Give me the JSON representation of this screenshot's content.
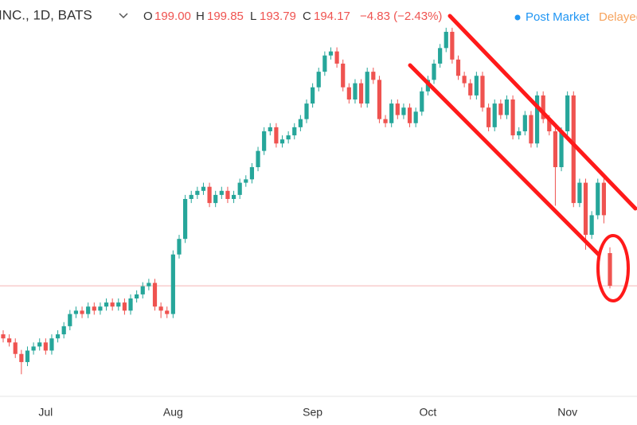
{
  "header": {
    "symbol": "INC., 1D, BATS",
    "o_label": "O",
    "open": "199.00",
    "h_label": "H",
    "high": "199.85",
    "l_label": "L",
    "low": "193.79",
    "c_label": "C",
    "close": "194.17",
    "change": "−4.83 (−2.43%)",
    "status": "Post Market",
    "delay": "Delayed"
  },
  "chart_data": {
    "type": "candlestick",
    "categories": [
      null,
      null,
      null,
      null,
      null,
      null,
      null,
      "Jul",
      null,
      null,
      null,
      null,
      null,
      null,
      null,
      null,
      null,
      null,
      null,
      null,
      null,
      null,
      null,
      null,
      null,
      null,
      null,
      null,
      "Aug",
      null,
      null,
      null,
      null,
      null,
      null,
      null,
      null,
      null,
      null,
      null,
      null,
      null,
      null,
      null,
      null,
      null,
      null,
      null,
      null,
      null,
      null,
      "Sep",
      null,
      null,
      null,
      null,
      null,
      null,
      null,
      null,
      null,
      null,
      null,
      null,
      null,
      null,
      null,
      null,
      null,
      null,
      "Oct",
      null,
      null,
      null,
      null,
      null,
      null,
      null,
      null,
      null,
      null,
      null,
      null,
      null,
      null,
      null,
      null,
      null,
      null,
      null,
      null,
      null,
      null,
      "Nov",
      null,
      null,
      null,
      null,
      null,
      null,
      null
    ],
    "open": [
      187.0,
      186.4,
      185.8,
      184.1,
      182.9,
      184.6,
      185.2,
      185.8,
      184.6,
      186.4,
      187.0,
      188.2,
      190.0,
      190.5,
      190.0,
      191.1,
      190.5,
      191.1,
      191.7,
      191.1,
      191.7,
      190.5,
      192.3,
      192.9,
      194.1,
      194.6,
      191.1,
      190.5,
      190.0,
      198.8,
      201.1,
      207.0,
      207.6,
      208.2,
      208.8,
      206.4,
      207.6,
      208.2,
      207.0,
      207.6,
      209.4,
      209.9,
      211.7,
      214.1,
      217.0,
      217.6,
      215.2,
      215.8,
      216.4,
      217.6,
      218.8,
      221.1,
      223.5,
      225.8,
      228.2,
      228.8,
      227.0,
      223.5,
      221.7,
      224.1,
      221.1,
      225.8,
      224.6,
      218.8,
      218.2,
      221.1,
      219.4,
      220.5,
      218.2,
      219.9,
      222.9,
      224.6,
      227.0,
      229.3,
      231.7,
      227.6,
      225.2,
      224.1,
      222.3,
      225.2,
      220.5,
      217.6,
      221.1,
      219.4,
      221.7,
      216.4,
      217.0,
      219.4,
      215.2,
      222.3,
      218.8,
      217.0,
      211.7,
      217.0,
      222.3,
      206.4,
      209.4,
      201.7,
      204.6,
      209.4,
      199.0
    ],
    "high": [
      187.6,
      187.0,
      186.4,
      184.7,
      185.2,
      185.8,
      186.4,
      186.4,
      187.0,
      187.6,
      188.8,
      190.6,
      191.1,
      191.1,
      191.7,
      191.7,
      191.7,
      192.3,
      192.3,
      192.3,
      192.3,
      192.9,
      193.5,
      194.7,
      195.2,
      195.2,
      191.7,
      191.1,
      199.4,
      201.7,
      207.6,
      208.2,
      208.8,
      209.4,
      209.4,
      208.2,
      208.8,
      208.8,
      208.2,
      210.0,
      210.5,
      212.3,
      214.7,
      217.6,
      218.2,
      218.2,
      216.4,
      217.0,
      218.2,
      219.4,
      221.7,
      224.1,
      226.4,
      228.8,
      229.4,
      229.4,
      227.6,
      224.1,
      224.7,
      224.7,
      226.4,
      226.4,
      225.2,
      219.4,
      221.7,
      221.7,
      221.1,
      221.1,
      220.5,
      223.5,
      225.2,
      227.6,
      229.9,
      232.3,
      232.3,
      228.2,
      225.8,
      224.7,
      225.8,
      225.8,
      221.1,
      221.7,
      221.7,
      222.3,
      222.3,
      217.6,
      220.0,
      220.0,
      222.9,
      222.9,
      219.4,
      217.6,
      217.6,
      222.9,
      222.9,
      210.0,
      210.0,
      205.2,
      210.0,
      210.0,
      199.85
    ],
    "low": [
      185.8,
      185.2,
      183.5,
      181.1,
      182.3,
      184.0,
      184.6,
      184.0,
      184.0,
      185.8,
      186.4,
      187.6,
      189.4,
      189.4,
      189.4,
      189.9,
      189.9,
      190.5,
      190.5,
      190.5,
      189.9,
      189.9,
      191.7,
      192.3,
      193.5,
      190.5,
      189.4,
      189.4,
      189.4,
      198.2,
      200.5,
      206.4,
      207.0,
      207.6,
      205.8,
      205.8,
      207.0,
      206.4,
      206.4,
      207.0,
      208.8,
      209.3,
      211.1,
      213.5,
      216.4,
      214.6,
      214.6,
      215.2,
      215.8,
      217.0,
      218.2,
      220.5,
      222.9,
      225.2,
      227.6,
      226.4,
      222.9,
      221.1,
      221.1,
      220.5,
      220.5,
      224.0,
      218.2,
      217.6,
      217.6,
      218.8,
      218.8,
      217.6,
      217.6,
      219.3,
      222.3,
      224.0,
      226.4,
      228.7,
      227.0,
      224.6,
      223.5,
      221.7,
      221.7,
      219.9,
      217.0,
      217.0,
      218.8,
      218.8,
      215.8,
      215.8,
      216.4,
      214.6,
      214.6,
      218.2,
      216.4,
      206.0,
      211.1,
      216.4,
      205.8,
      205.8,
      199.5,
      201.1,
      204.0,
      203.4,
      193.79
    ],
    "close": [
      186.4,
      185.8,
      184.1,
      182.9,
      184.6,
      185.2,
      185.8,
      184.6,
      186.4,
      187.0,
      188.2,
      190.0,
      190.5,
      190.0,
      191.1,
      190.5,
      191.1,
      191.7,
      191.1,
      191.7,
      190.5,
      192.3,
      192.9,
      194.1,
      194.6,
      191.1,
      190.5,
      190.0,
      198.8,
      201.1,
      207.0,
      207.6,
      208.2,
      208.8,
      206.4,
      207.6,
      208.2,
      207.0,
      207.6,
      209.4,
      209.9,
      211.7,
      214.1,
      217.0,
      217.6,
      215.2,
      215.8,
      216.4,
      217.6,
      218.8,
      221.1,
      223.5,
      225.8,
      228.2,
      228.8,
      227.0,
      223.5,
      221.7,
      224.1,
      221.1,
      225.8,
      224.6,
      218.8,
      218.2,
      221.1,
      219.4,
      220.5,
      218.2,
      219.9,
      222.9,
      224.6,
      227.0,
      229.3,
      231.7,
      227.6,
      225.2,
      224.1,
      222.3,
      225.2,
      220.5,
      217.6,
      221.1,
      219.4,
      221.7,
      216.4,
      217.0,
      219.4,
      215.2,
      222.3,
      218.8,
      217.0,
      211.7,
      217.0,
      222.3,
      206.4,
      209.4,
      201.7,
      204.6,
      209.4,
      204.6,
      194.17
    ],
    "ylim": [
      177.6,
      236.4
    ],
    "colors": {
      "up": "#26a69a",
      "down": "#ef5350"
    }
  }
}
